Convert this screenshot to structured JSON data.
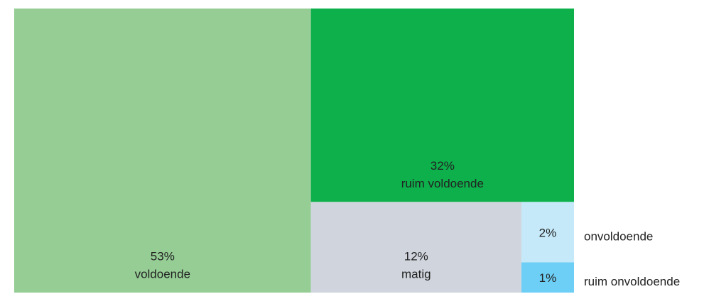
{
  "chart_data": {
    "type": "treemap",
    "categories": [
      "voldoende",
      "ruim voldoende",
      "matig",
      "onvoldoende",
      "ruim onvoldoende"
    ],
    "values": [
      53,
      32,
      12,
      2,
      1
    ],
    "value_labels": [
      "53%",
      "32%",
      "12%",
      "2%",
      "1%"
    ],
    "colors": [
      "#95cd95",
      "#0db04b",
      "#d0d5dd",
      "#c5e9f9",
      "#6dcff6"
    ]
  }
}
